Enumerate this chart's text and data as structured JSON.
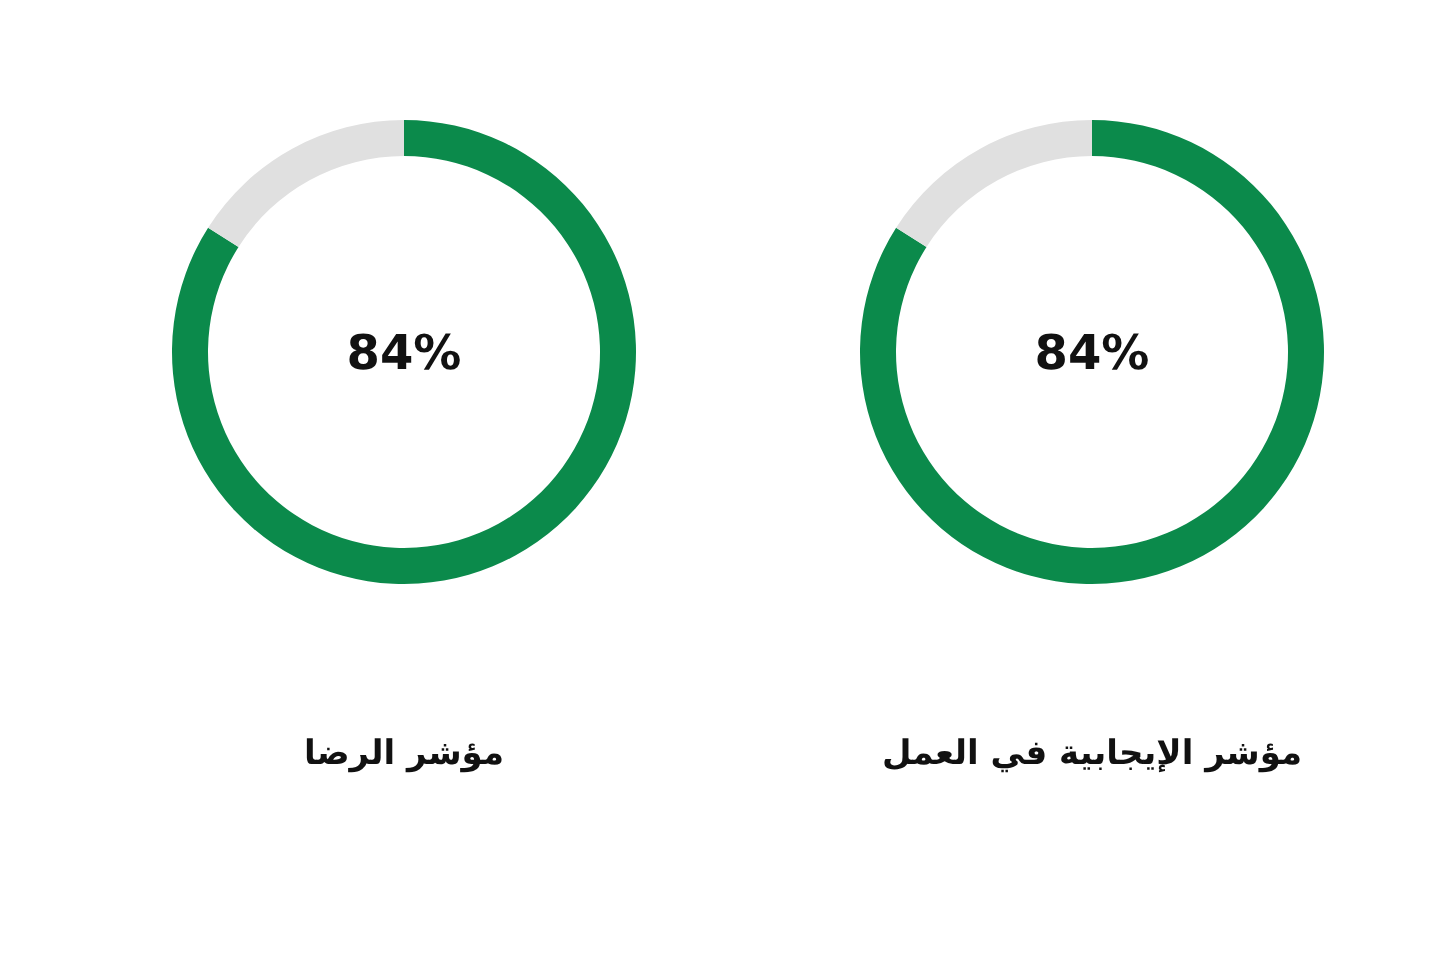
{
  "chart_data": [
    {
      "type": "donut",
      "title": "مؤشر الرضا",
      "categories": [
        null,
        null
      ],
      "values": [
        84,
        16
      ],
      "colors": [
        "#0b8a4b",
        "#e0e0e0"
      ],
      "value_labels": [
        "84%",
        null
      ]
    },
    {
      "type": "donut",
      "title": "مؤشر الإيجابية في العمل",
      "categories": [
        null,
        null
      ],
      "values": [
        84,
        16
      ],
      "colors": [
        "#0b8a4b",
        "#e0e0e0"
      ],
      "value_labels": [
        "84%",
        null
      ]
    }
  ]
}
